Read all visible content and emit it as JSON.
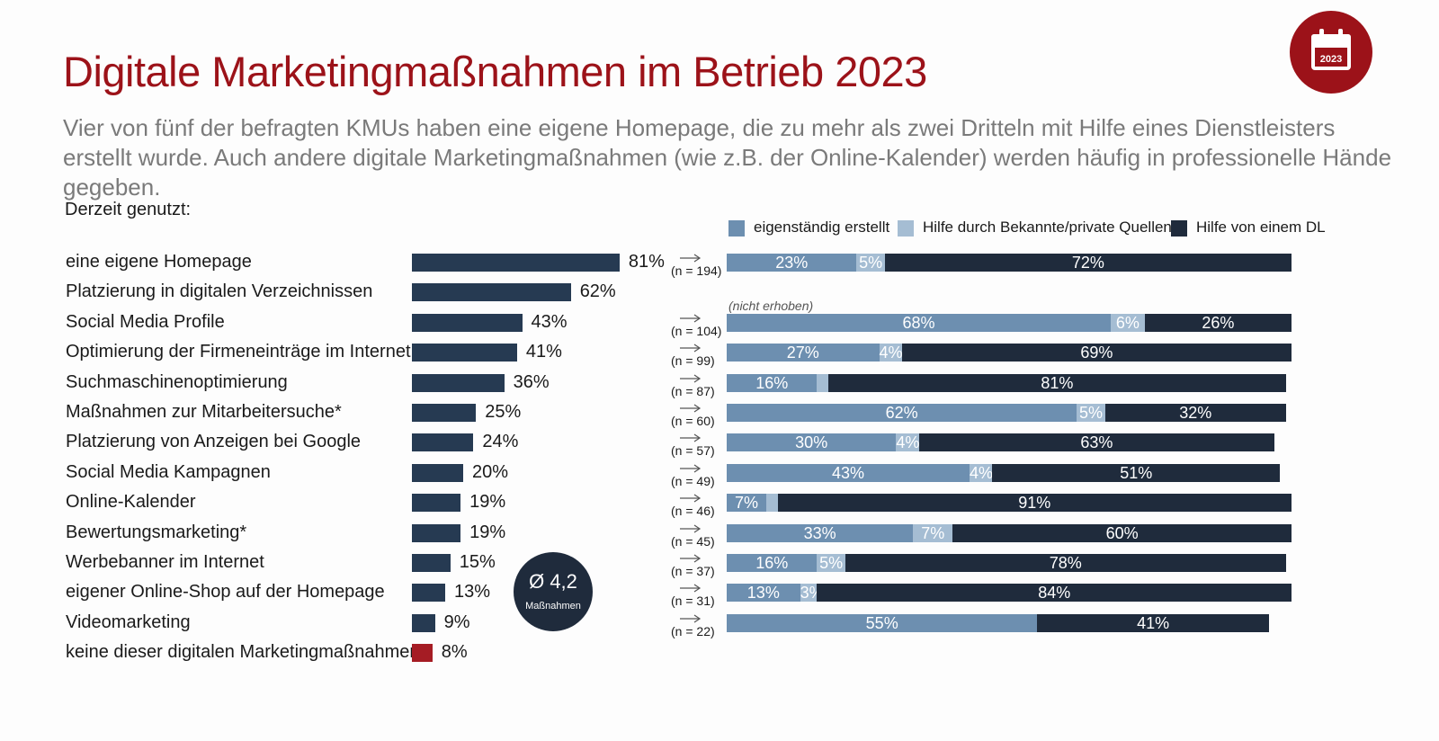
{
  "title": "Digitale Marketingmaßnahmen im Betrieb 2023",
  "subtitle": "Vier von fünf der befragten KMUs haben eine eigene Homepage, die zu mehr als zwei Dritteln mit Hilfe eines Dienstleisters erstellt wurde. Auch andere digitale Marketingmaßnahmen (wie z.B. der Online-Kalender) werden häufig in professionelle Hände gegeben.",
  "badge": {
    "year": "2023",
    "icon": "calendar-icon"
  },
  "intro_label": "Derzeit genutzt:",
  "average": {
    "value": "Ø 4,2",
    "label": "Maßnahmen"
  },
  "not_collected_label": "(nicht erhoben)",
  "colors": {
    "title": "#9c1219",
    "bar_dark": "#263a52",
    "bar_none": "#a51c24",
    "self": "#6d8fb0",
    "private": "#a5bdd3",
    "provider": "#1f2b3c"
  },
  "legend": [
    {
      "label": "eigenständig erstellt"
    },
    {
      "label": "Hilfe durch Bekannte/private Quellen"
    },
    {
      "label": "Hilfe von einem DL"
    }
  ],
  "chart_data": [
    {
      "type": "bar",
      "orientation": "horizontal",
      "xlim": [
        0,
        100
      ],
      "categories": [
        "eine eigene Homepage",
        "Platzierung in digitalen Verzeichnissen",
        "Social Media Profile",
        "Optimierung der Firmeneinträge im Internet",
        "Suchmaschinenoptimierung",
        "Maßnahmen zur Mitarbeitersuche*",
        "Platzierung von Anzeigen bei Google",
        "Social Media Kampagnen",
        "Online-Kalender",
        "Bewertungsmarketing*",
        "Werbebanner im Internet",
        "eigener Online-Shop auf der Homepage",
        "Videomarketing",
        "keine dieser digitalen Marketingmaßnahmen"
      ],
      "values": [
        81,
        62,
        43,
        41,
        36,
        25,
        24,
        20,
        19,
        19,
        15,
        13,
        9,
        8
      ],
      "value_labels": [
        "81%",
        "62%",
        "43%",
        "41%",
        "36%",
        "25%",
        "24%",
        "20%",
        "19%",
        "19%",
        "15%",
        "13%",
        "9%",
        "8%"
      ]
    },
    {
      "type": "bar",
      "stacked": true,
      "orientation": "horizontal",
      "xlim": [
        0,
        100
      ],
      "categories": [
        "eine eigene Homepage",
        "Platzierung in digitalen Verzeichnissen",
        "Social Media Profile",
        "Optimierung der Firmeneinträge im Internet",
        "Suchmaschinenoptimierung",
        "Maßnahmen zur Mitarbeitersuche*",
        "Platzierung von Anzeigen bei Google",
        "Social Media Kampagnen",
        "Online-Kalender",
        "Bewertungsmarketing*",
        "Werbebanner im Internet",
        "eigener Online-Shop auf der Homepage",
        "Videomarketing",
        "keine dieser digitalen Marketingmaßnahmen"
      ],
      "n_labels": [
        "(n = 194)",
        null,
        "(n = 104)",
        "(n = 99)",
        "(n = 87)",
        "(n = 60)",
        "(n = 57)",
        "(n = 49)",
        "(n = 46)",
        "(n = 45)",
        "(n = 37)",
        "(n = 31)",
        "(n = 22)",
        null
      ],
      "series": [
        {
          "name": "eigenständig erstellt",
          "values": [
            23,
            null,
            68,
            27,
            16,
            62,
            30,
            43,
            7,
            33,
            16,
            13,
            55,
            null
          ],
          "labels": [
            "23%",
            null,
            "68%",
            "27%",
            "16%",
            "62%",
            "30%",
            "43%",
            "7%",
            "33%",
            "16%",
            "13%",
            "55%",
            null
          ]
        },
        {
          "name": "Hilfe durch Bekannte/private Quellen",
          "values": [
            5,
            null,
            6,
            4,
            2,
            5,
            4,
            4,
            2,
            7,
            5,
            3,
            0,
            null
          ],
          "labels": [
            "5%",
            null,
            "6%",
            "4%",
            "",
            "5%",
            "4%",
            "4%",
            "",
            "7%",
            "5%",
            "3%",
            "",
            null
          ]
        },
        {
          "name": "Hilfe von einem DL",
          "values": [
            72,
            null,
            26,
            69,
            81,
            32,
            63,
            51,
            91,
            60,
            78,
            84,
            41,
            null
          ],
          "labels": [
            "72%",
            null,
            "26%",
            "69%",
            "81%",
            "32%",
            "63%",
            "51%",
            "91%",
            "60%",
            "78%",
            "84%",
            "41%",
            null
          ]
        }
      ]
    }
  ]
}
